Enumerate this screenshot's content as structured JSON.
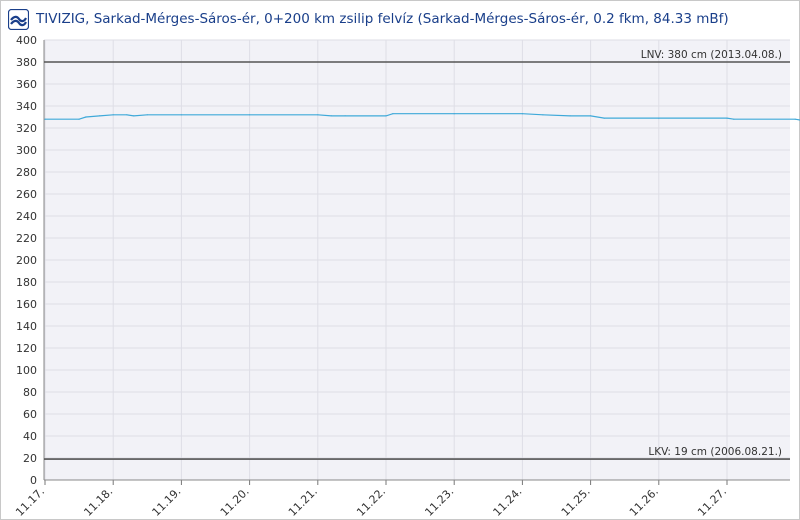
{
  "header": {
    "title": "TIVIZIG, Sarkad-Mérges-Sáros-ér, 0+200 km zsilip felvíz (Sarkad-Mérges-Sáros-ér, 0.2 fkm, 84.33 mBf)",
    "logo_icon": "water-wave-icon"
  },
  "colors": {
    "title": "#1a3f8a",
    "series": "#3fa9d9",
    "ref_line": "#555555",
    "plot_bg": "#f2f2f7",
    "grid": "#dedee6"
  },
  "chart_data": {
    "type": "line",
    "ylim": [
      0,
      400
    ],
    "y_ticks": [
      0,
      20,
      40,
      60,
      80,
      100,
      120,
      140,
      160,
      180,
      200,
      220,
      240,
      260,
      280,
      300,
      320,
      340,
      360,
      380,
      400
    ],
    "x_range_days": [
      0,
      11.8
    ],
    "x_ticks": [
      {
        "day": 0,
        "label": "11.17."
      },
      {
        "day": 1,
        "label": "11.18."
      },
      {
        "day": 2,
        "label": "11.19."
      },
      {
        "day": 3,
        "label": "11.20."
      },
      {
        "day": 4,
        "label": "11.21."
      },
      {
        "day": 5,
        "label": "11.22."
      },
      {
        "day": 6,
        "label": "11.23."
      },
      {
        "day": 7,
        "label": "11.24."
      },
      {
        "day": 8,
        "label": "11.25."
      },
      {
        "day": 9,
        "label": "11.26."
      },
      {
        "day": 10,
        "label": "11.27."
      }
    ],
    "reference_lines": [
      {
        "value": 380,
        "label": "LNV: 380 cm (2013.04.08.)"
      },
      {
        "value": 19,
        "label": "LKV: 19 cm (2006.08.21.)"
      }
    ],
    "series": [
      {
        "points": [
          [
            0,
            328
          ],
          [
            0.5,
            328
          ],
          [
            0.6,
            330
          ],
          [
            0.8,
            331
          ],
          [
            1.0,
            332
          ],
          [
            1.2,
            332
          ],
          [
            1.3,
            331
          ],
          [
            1.5,
            332
          ],
          [
            2.0,
            332
          ],
          [
            3.0,
            332
          ],
          [
            4.0,
            332
          ],
          [
            4.2,
            331
          ],
          [
            4.4,
            331
          ],
          [
            5.0,
            331
          ],
          [
            5.1,
            333
          ],
          [
            6.0,
            333
          ],
          [
            7.0,
            333
          ],
          [
            7.3,
            332
          ],
          [
            7.7,
            331
          ],
          [
            8.0,
            331
          ],
          [
            8.2,
            329
          ],
          [
            9.0,
            329
          ],
          [
            10.0,
            329
          ],
          [
            10.1,
            328
          ],
          [
            11.0,
            328
          ],
          [
            11.1,
            327
          ],
          [
            11.8,
            327
          ]
        ]
      }
    ]
  }
}
